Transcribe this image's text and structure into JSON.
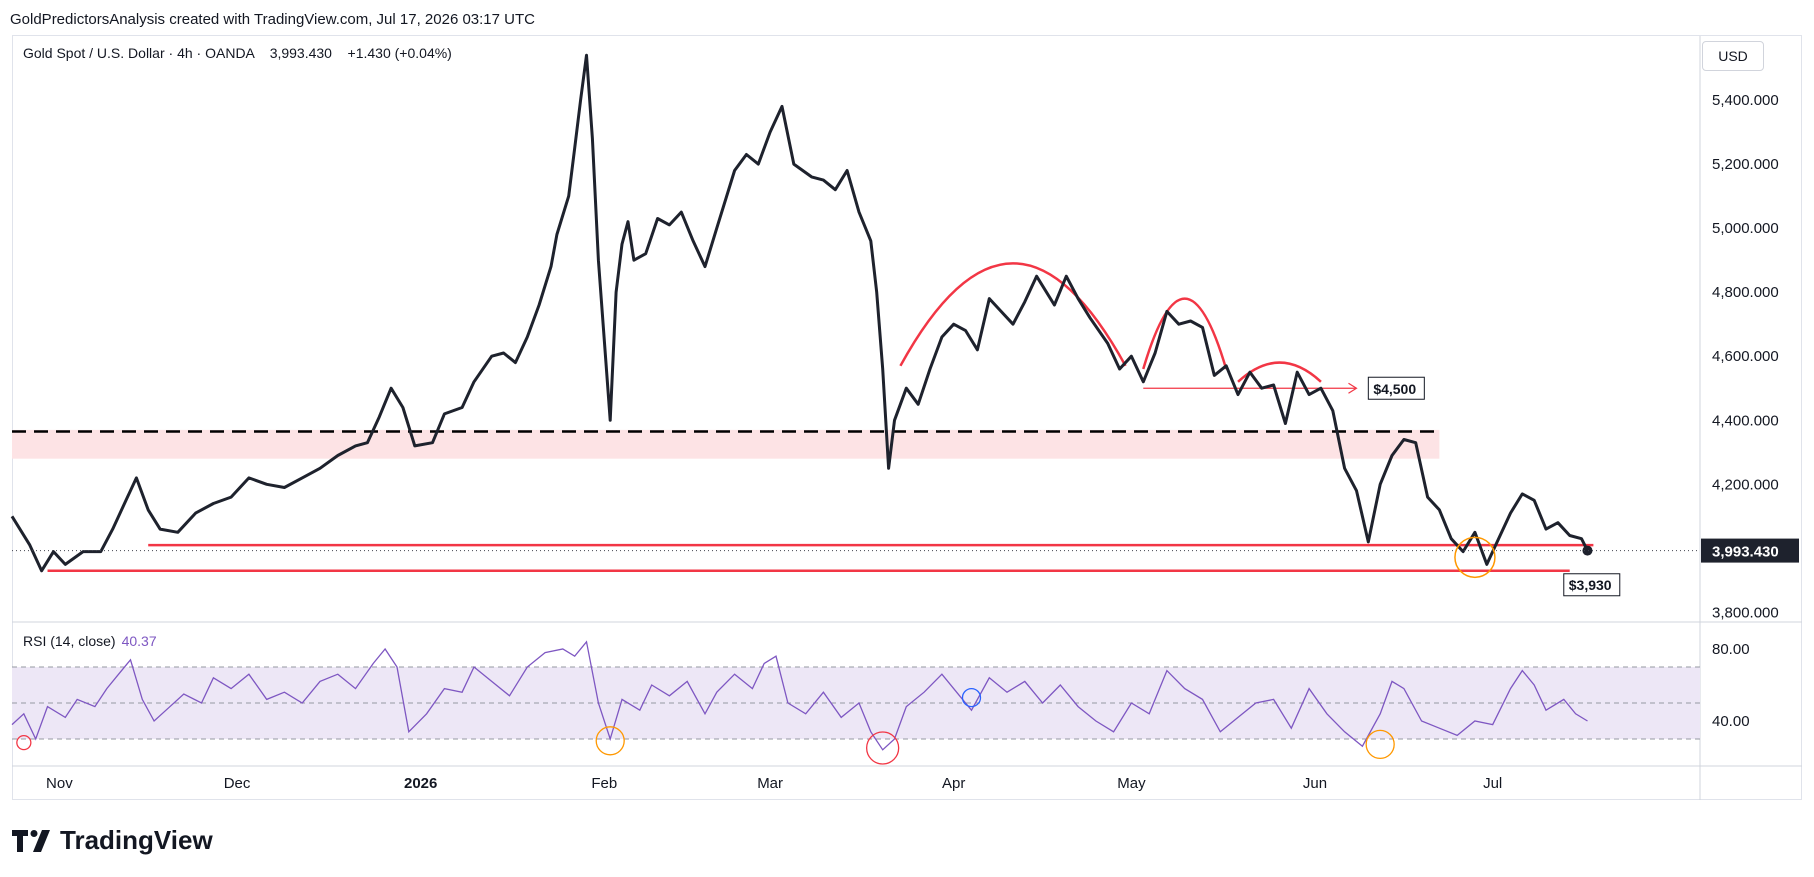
{
  "header": {
    "attribution": "GoldPredictorsAnalysis created with TradingView.com, Jul 17, 2026 03:17 UTC"
  },
  "symbol": {
    "name": "Gold Spot / U.S. Dollar",
    "interval": "4h",
    "exchange": "OANDA",
    "last": "3,993.430",
    "change": "+1.430 (+0.04%)"
  },
  "currency_button": "USD",
  "brand": {
    "name": "TradingView",
    "icon": "tradingview-logo"
  },
  "colors": {
    "price_line": "#1e222d",
    "annotation_red": "#f23645",
    "zone_fill": "#fde3e5",
    "rsi_line": "#7e57c2",
    "rsi_band": "#ede7f6",
    "circle_orange": "#ff9800",
    "circle_blue": "#2962ff",
    "circle_red": "#f23645"
  },
  "chart_data": {
    "type": "line",
    "title": "Gold Spot / U.S. Dollar · 4h · OANDA",
    "price_axis": {
      "ticks": [
        3800,
        4000,
        4200,
        4400,
        4600,
        4800,
        5000,
        5200,
        5400
      ],
      "tick_labels": [
        "3,800.000",
        "4,000.000",
        "4,200.000",
        "4,400.000",
        "4,600.000",
        "4,800.000",
        "5,000.000",
        "5,200.000",
        "5,400.000"
      ],
      "ylim": [
        3770,
        5600
      ],
      "last_price_label": "3,993.430"
    },
    "time_axis": {
      "ticks": [
        "2025-11-01",
        "2025-12-01",
        "2026-01-01",
        "2026-02-01",
        "2026-03-01",
        "2026-04-01",
        "2026-05-01",
        "2026-06-01",
        "2026-07-01"
      ],
      "tick_labels": [
        "Nov",
        "Dec",
        "2026",
        "Feb",
        "Mar",
        "Apr",
        "May",
        "Jun",
        "Jul"
      ],
      "xlim": [
        "2025-10-24",
        "2026-08-05"
      ]
    },
    "series": [
      {
        "points": [
          [
            "2025-10-24",
            4100
          ],
          [
            "2025-10-27",
            4010
          ],
          [
            "2025-10-29",
            3930
          ],
          [
            "2025-10-31",
            3990
          ],
          [
            "2025-11-02",
            3950
          ],
          [
            "2025-11-05",
            3990
          ],
          [
            "2025-11-08",
            3990
          ],
          [
            "2025-11-10",
            4060
          ],
          [
            "2025-11-12",
            4140
          ],
          [
            "2025-11-14",
            4220
          ],
          [
            "2025-11-16",
            4120
          ],
          [
            "2025-11-18",
            4060
          ],
          [
            "2025-11-21",
            4050
          ],
          [
            "2025-11-24",
            4110
          ],
          [
            "2025-11-27",
            4140
          ],
          [
            "2025-11-30",
            4160
          ],
          [
            "2025-12-03",
            4220
          ],
          [
            "2025-12-06",
            4200
          ],
          [
            "2025-12-09",
            4190
          ],
          [
            "2025-12-12",
            4220
          ],
          [
            "2025-12-15",
            4250
          ],
          [
            "2025-12-18",
            4290
          ],
          [
            "2025-12-21",
            4320
          ],
          [
            "2025-12-23",
            4330
          ],
          [
            "2025-12-25",
            4410
          ],
          [
            "2025-12-27",
            4500
          ],
          [
            "2025-12-29",
            4440
          ],
          [
            "2025-12-31",
            4320
          ],
          [
            "2026-01-03",
            4330
          ],
          [
            "2026-01-05",
            4420
          ],
          [
            "2026-01-08",
            4440
          ],
          [
            "2026-01-10",
            4520
          ],
          [
            "2026-01-13",
            4600
          ],
          [
            "2026-01-15",
            4610
          ],
          [
            "2026-01-17",
            4580
          ],
          [
            "2026-01-19",
            4660
          ],
          [
            "2026-01-21",
            4760
          ],
          [
            "2026-01-23",
            4880
          ],
          [
            "2026-01-24",
            4980
          ],
          [
            "2026-01-26",
            5100
          ],
          [
            "2026-01-27",
            5250
          ],
          [
            "2026-01-28",
            5400
          ],
          [
            "2026-01-29",
            5540
          ],
          [
            "2026-01-30",
            5280
          ],
          [
            "2026-01-31",
            4900
          ],
          [
            "2026-02-02",
            4400
          ],
          [
            "2026-02-03",
            4800
          ],
          [
            "2026-02-04",
            4950
          ],
          [
            "2026-02-05",
            5020
          ],
          [
            "2026-02-06",
            4900
          ],
          [
            "2026-02-08",
            4920
          ],
          [
            "2026-02-10",
            5030
          ],
          [
            "2026-02-12",
            5010
          ],
          [
            "2026-02-14",
            5050
          ],
          [
            "2026-02-16",
            4960
          ],
          [
            "2026-02-18",
            4880
          ],
          [
            "2026-02-20",
            5000
          ],
          [
            "2026-02-23",
            5180
          ],
          [
            "2026-02-25",
            5230
          ],
          [
            "2026-02-27",
            5200
          ],
          [
            "2026-03-01",
            5300
          ],
          [
            "2026-03-03",
            5380
          ],
          [
            "2026-03-05",
            5200
          ],
          [
            "2026-03-08",
            5160
          ],
          [
            "2026-03-10",
            5150
          ],
          [
            "2026-03-12",
            5120
          ],
          [
            "2026-03-14",
            5180
          ],
          [
            "2026-03-16",
            5050
          ],
          [
            "2026-03-18",
            4960
          ],
          [
            "2026-03-19",
            4800
          ],
          [
            "2026-03-20",
            4560
          ],
          [
            "2026-03-21",
            4250
          ],
          [
            "2026-03-22",
            4400
          ],
          [
            "2026-03-24",
            4500
          ],
          [
            "2026-03-26",
            4450
          ],
          [
            "2026-03-28",
            4560
          ],
          [
            "2026-03-30",
            4660
          ],
          [
            "2026-04-01",
            4700
          ],
          [
            "2026-04-03",
            4680
          ],
          [
            "2026-04-05",
            4620
          ],
          [
            "2026-04-07",
            4780
          ],
          [
            "2026-04-09",
            4740
          ],
          [
            "2026-04-11",
            4700
          ],
          [
            "2026-04-13",
            4770
          ],
          [
            "2026-04-15",
            4850
          ],
          [
            "2026-04-18",
            4760
          ],
          [
            "2026-04-20",
            4850
          ],
          [
            "2026-04-22",
            4780
          ],
          [
            "2026-04-24",
            4720
          ],
          [
            "2026-04-27",
            4640
          ],
          [
            "2026-04-29",
            4560
          ],
          [
            "2026-05-01",
            4600
          ],
          [
            "2026-05-03",
            4520
          ],
          [
            "2026-05-05",
            4610
          ],
          [
            "2026-05-07",
            4740
          ],
          [
            "2026-05-09",
            4700
          ],
          [
            "2026-05-11",
            4710
          ],
          [
            "2026-05-13",
            4690
          ],
          [
            "2026-05-15",
            4540
          ],
          [
            "2026-05-17",
            4570
          ],
          [
            "2026-05-19",
            4480
          ],
          [
            "2026-05-21",
            4550
          ],
          [
            "2026-05-23",
            4500
          ],
          [
            "2026-05-25",
            4510
          ],
          [
            "2026-05-27",
            4390
          ],
          [
            "2026-05-29",
            4550
          ],
          [
            "2026-05-31",
            4480
          ],
          [
            "2026-06-02",
            4500
          ],
          [
            "2026-06-04",
            4430
          ],
          [
            "2026-06-06",
            4250
          ],
          [
            "2026-06-08",
            4180
          ],
          [
            "2026-06-10",
            4020
          ],
          [
            "2026-06-12",
            4200
          ],
          [
            "2026-06-14",
            4290
          ],
          [
            "2026-06-16",
            4340
          ],
          [
            "2026-06-18",
            4330
          ],
          [
            "2026-06-20",
            4160
          ],
          [
            "2026-06-22",
            4120
          ],
          [
            "2026-06-24",
            4030
          ],
          [
            "2026-06-26",
            3990
          ],
          [
            "2026-06-28",
            4050
          ],
          [
            "2026-06-30",
            3950
          ],
          [
            "2026-07-02",
            4030
          ],
          [
            "2026-07-04",
            4110
          ],
          [
            "2026-07-06",
            4170
          ],
          [
            "2026-07-08",
            4150
          ],
          [
            "2026-07-10",
            4060
          ],
          [
            "2026-07-12",
            4080
          ],
          [
            "2026-07-14",
            4040
          ],
          [
            "2026-07-16",
            4030
          ],
          [
            "2026-07-17",
            3993
          ]
        ]
      }
    ],
    "annotations": {
      "price_labels": [
        "$4,500",
        "$3,930"
      ],
      "horizontal_lines": [
        4010,
        3930,
        4365,
        4500
      ],
      "zone": [
        4280,
        4370
      ]
    },
    "rsi": {
      "title": "RSI (14, close)",
      "value": "40.37",
      "ticks": [
        80,
        40
      ],
      "tick_labels": [
        "80.00",
        "40.00"
      ],
      "band": [
        30,
        70
      ],
      "ylim": [
        15,
        95
      ],
      "points": [
        [
          "2025-10-24",
          38
        ],
        [
          "2025-10-26",
          44
        ],
        [
          "2025-10-28",
          30
        ],
        [
          "2025-10-30",
          48
        ],
        [
          "2025-11-02",
          42
        ],
        [
          "2025-11-04",
          52
        ],
        [
          "2025-11-07",
          48
        ],
        [
          "2025-11-09",
          58
        ],
        [
          "2025-11-11",
          66
        ],
        [
          "2025-11-13",
          74
        ],
        [
          "2025-11-15",
          52
        ],
        [
          "2025-11-17",
          40
        ],
        [
          "2025-11-19",
          46
        ],
        [
          "2025-11-22",
          55
        ],
        [
          "2025-11-25",
          50
        ],
        [
          "2025-11-27",
          64
        ],
        [
          "2025-11-30",
          58
        ],
        [
          "2025-12-03",
          66
        ],
        [
          "2025-12-06",
          52
        ],
        [
          "2025-12-09",
          56
        ],
        [
          "2025-12-12",
          50
        ],
        [
          "2025-12-15",
          62
        ],
        [
          "2025-12-18",
          66
        ],
        [
          "2025-12-21",
          58
        ],
        [
          "2025-12-24",
          72
        ],
        [
          "2025-12-26",
          80
        ],
        [
          "2025-12-28",
          70
        ],
        [
          "2025-12-30",
          34
        ],
        [
          "2026-01-02",
          44
        ],
        [
          "2026-01-05",
          58
        ],
        [
          "2026-01-08",
          56
        ],
        [
          "2026-01-10",
          70
        ],
        [
          "2026-01-13",
          62
        ],
        [
          "2026-01-16",
          54
        ],
        [
          "2026-01-19",
          70
        ],
        [
          "2026-01-22",
          78
        ],
        [
          "2026-01-25",
          80
        ],
        [
          "2026-01-27",
          76
        ],
        [
          "2026-01-29",
          84
        ],
        [
          "2026-01-31",
          50
        ],
        [
          "2026-02-02",
          30
        ],
        [
          "2026-02-04",
          52
        ],
        [
          "2026-02-07",
          46
        ],
        [
          "2026-02-09",
          60
        ],
        [
          "2026-02-12",
          54
        ],
        [
          "2026-02-15",
          62
        ],
        [
          "2026-02-18",
          44
        ],
        [
          "2026-02-20",
          56
        ],
        [
          "2026-02-23",
          66
        ],
        [
          "2026-02-26",
          58
        ],
        [
          "2026-02-28",
          72
        ],
        [
          "2026-03-02",
          76
        ],
        [
          "2026-03-04",
          50
        ],
        [
          "2026-03-07",
          44
        ],
        [
          "2026-03-10",
          56
        ],
        [
          "2026-03-13",
          42
        ],
        [
          "2026-03-16",
          50
        ],
        [
          "2026-03-18",
          34
        ],
        [
          "2026-03-20",
          24
        ],
        [
          "2026-03-22",
          30
        ],
        [
          "2026-03-24",
          48
        ],
        [
          "2026-03-27",
          56
        ],
        [
          "2026-03-30",
          66
        ],
        [
          "2026-04-02",
          54
        ],
        [
          "2026-04-04",
          46
        ],
        [
          "2026-04-07",
          64
        ],
        [
          "2026-04-10",
          56
        ],
        [
          "2026-04-13",
          62
        ],
        [
          "2026-04-16",
          50
        ],
        [
          "2026-04-19",
          60
        ],
        [
          "2026-04-22",
          48
        ],
        [
          "2026-04-25",
          40
        ],
        [
          "2026-04-28",
          34
        ],
        [
          "2026-05-01",
          50
        ],
        [
          "2026-05-04",
          44
        ],
        [
          "2026-05-07",
          68
        ],
        [
          "2026-05-10",
          58
        ],
        [
          "2026-05-13",
          52
        ],
        [
          "2026-05-16",
          34
        ],
        [
          "2026-05-19",
          42
        ],
        [
          "2026-05-22",
          50
        ],
        [
          "2026-05-25",
          52
        ],
        [
          "2026-05-28",
          36
        ],
        [
          "2026-05-31",
          58
        ],
        [
          "2026-06-03",
          44
        ],
        [
          "2026-06-06",
          34
        ],
        [
          "2026-06-09",
          26
        ],
        [
          "2026-06-12",
          44
        ],
        [
          "2026-06-14",
          62
        ],
        [
          "2026-06-16",
          58
        ],
        [
          "2026-06-19",
          40
        ],
        [
          "2026-06-22",
          36
        ],
        [
          "2026-06-25",
          32
        ],
        [
          "2026-06-28",
          40
        ],
        [
          "2026-07-01",
          38
        ],
        [
          "2026-07-04",
          58
        ],
        [
          "2026-07-06",
          68
        ],
        [
          "2026-07-08",
          60
        ],
        [
          "2026-07-10",
          46
        ],
        [
          "2026-07-13",
          52
        ],
        [
          "2026-07-15",
          44
        ],
        [
          "2026-07-17",
          40
        ]
      ]
    }
  }
}
